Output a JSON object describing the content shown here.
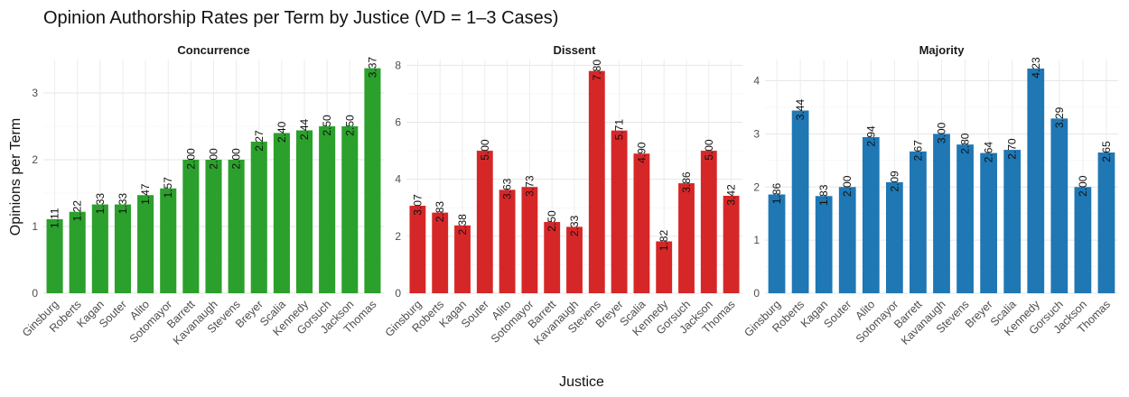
{
  "title": "Opinion Authorship Rates per Term by Justice (VD = 1–3 Cases)",
  "xlabel": "Justice",
  "ylabel": "Opinions per Term",
  "chart_data": [
    {
      "type": "bar",
      "facet": "Concurrence",
      "color": "#2ca02c",
      "ylim": [
        0,
        3.5
      ],
      "yticks": [
        0,
        1,
        2,
        3
      ],
      "categories": [
        "Ginsburg",
        "Roberts",
        "Kagan",
        "Souter",
        "Alito",
        "Sotomayor",
        "Barrett",
        "Kavanaugh",
        "Stevens",
        "Breyer",
        "Scalia",
        "Kennedy",
        "Gorsuch",
        "Jackson",
        "Thomas"
      ],
      "values": [
        1.11,
        1.22,
        1.33,
        1.33,
        1.47,
        1.57,
        2.0,
        2.0,
        2.0,
        2.27,
        2.4,
        2.44,
        2.5,
        2.5,
        3.37
      ],
      "labels": [
        "1.11",
        "1.22",
        "1.33",
        "1.33",
        "1.47",
        "1.57",
        "2.00",
        "2.00",
        "2.00",
        "2.27",
        "2.40",
        "2.44",
        "2.50",
        "2.50",
        "3.37"
      ]
    },
    {
      "type": "bar",
      "facet": "Dissent",
      "color": "#d62728",
      "ylim": [
        0,
        8.2
      ],
      "yticks": [
        0,
        2,
        4,
        6,
        8
      ],
      "categories": [
        "Ginsburg",
        "Roberts",
        "Kagan",
        "Souter",
        "Alito",
        "Sotomayor",
        "Barrett",
        "Kavanaugh",
        "Stevens",
        "Breyer",
        "Scalia",
        "Kennedy",
        "Gorsuch",
        "Jackson",
        "Thomas"
      ],
      "values": [
        3.07,
        2.83,
        2.38,
        5.0,
        3.63,
        3.73,
        2.5,
        2.33,
        7.8,
        5.71,
        4.9,
        1.82,
        3.86,
        5.0,
        3.42
      ],
      "labels": [
        "3.07",
        "2.83",
        "2.38",
        "5.00",
        "3.63",
        "3.73",
        "2.50",
        "2.33",
        "7.80",
        "5.71",
        "4.90",
        "1.82",
        "3.86",
        "5.00",
        "3.42"
      ]
    },
    {
      "type": "bar",
      "facet": "Majority",
      "color": "#1f77b4",
      "ylim": [
        0,
        4.4
      ],
      "yticks": [
        0,
        1,
        2,
        3,
        4
      ],
      "categories": [
        "Ginsburg",
        "Roberts",
        "Kagan",
        "Souter",
        "Alito",
        "Sotomayor",
        "Barrett",
        "Kavanaugh",
        "Stevens",
        "Breyer",
        "Scalia",
        "Kennedy",
        "Gorsuch",
        "Jackson",
        "Thomas"
      ],
      "values": [
        1.86,
        3.44,
        1.83,
        2.0,
        2.94,
        2.09,
        2.67,
        3.0,
        2.8,
        2.64,
        2.7,
        4.23,
        3.29,
        2.0,
        2.65
      ],
      "labels": [
        "1.86",
        "3.44",
        "1.83",
        "2.00",
        "2.94",
        "2.09",
        "2.67",
        "3.00",
        "2.80",
        "2.64",
        "2.70",
        "4.23",
        "3.29",
        "2.00",
        "2.65"
      ]
    }
  ]
}
